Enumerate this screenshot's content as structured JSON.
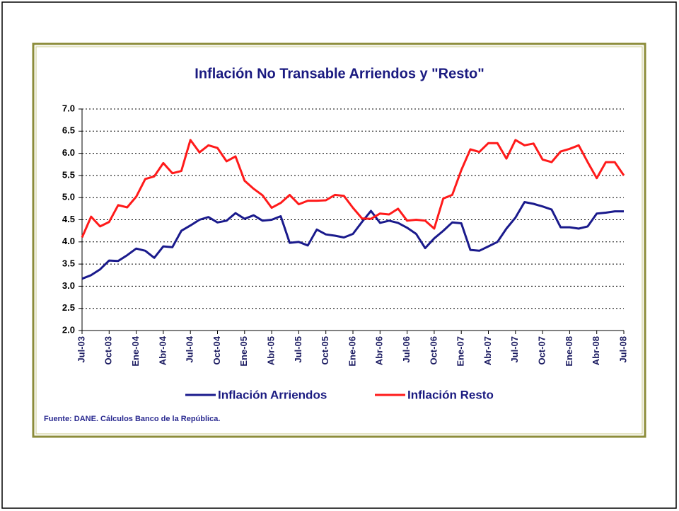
{
  "chart_data": {
    "type": "line",
    "title": "Inflación No Transable Arriendos y \"Resto\"",
    "source": "Fuente: DANE. Cálculos Banco de la República.",
    "categories": [
      "Jul-03",
      null,
      null,
      "Oct-03",
      null,
      null,
      "Ene-04",
      null,
      null,
      "Abr-04",
      null,
      null,
      "Jul-04",
      null,
      null,
      "Oct-04",
      null,
      null,
      "Ene-05",
      null,
      null,
      "Abr-05",
      null,
      null,
      "Jul-05",
      null,
      null,
      "Oct-05",
      null,
      null,
      "Ene-06",
      null,
      null,
      "Abr-06",
      null,
      null,
      "Jul-06",
      null,
      null,
      "Oct-06",
      null,
      null,
      "Ene-07",
      null,
      null,
      "Abr-07",
      null,
      null,
      "Jul-07",
      null,
      null,
      "Oct-07",
      null,
      null,
      "Ene-08",
      null,
      null,
      "Abr-08",
      null,
      null,
      "Jul-08"
    ],
    "series": [
      {
        "name": "Inflación Arriendos",
        "color": "#1a1a8c",
        "values": [
          3.17,
          3.25,
          3.38,
          3.58,
          3.57,
          3.7,
          3.85,
          3.8,
          3.64,
          3.9,
          3.88,
          4.25,
          4.37,
          4.5,
          4.56,
          4.44,
          4.48,
          4.65,
          4.52,
          4.6,
          4.48,
          4.5,
          4.58,
          3.98,
          4.0,
          3.92,
          4.28,
          4.17,
          4.14,
          4.1,
          4.18,
          4.45,
          4.7,
          4.43,
          4.48,
          4.43,
          4.32,
          4.18,
          3.86,
          4.08,
          4.25,
          4.44,
          4.42,
          3.82,
          3.8,
          3.9,
          4.0,
          4.3,
          4.55,
          4.9,
          4.86,
          4.8,
          4.73,
          4.33,
          4.33,
          4.3,
          4.35,
          4.64,
          4.66,
          4.69,
          4.69
        ]
      },
      {
        "name": "Inflación Resto",
        "color": "#ff1a1a",
        "values": [
          4.1,
          4.57,
          4.35,
          4.45,
          4.83,
          4.78,
          5.02,
          5.42,
          5.48,
          5.78,
          5.55,
          5.6,
          6.3,
          6.02,
          6.18,
          6.12,
          5.82,
          5.93,
          5.38,
          5.2,
          5.05,
          4.77,
          4.88,
          5.06,
          4.85,
          4.93,
          4.93,
          4.94,
          5.06,
          5.04,
          4.77,
          4.53,
          4.52,
          4.64,
          4.62,
          4.75,
          4.48,
          4.5,
          4.48,
          4.3,
          4.98,
          5.06,
          5.62,
          6.09,
          6.03,
          6.23,
          6.23,
          5.88,
          6.3,
          6.18,
          6.22,
          5.86,
          5.8,
          6.04,
          6.1,
          6.18,
          5.8,
          5.44,
          5.8,
          5.8,
          5.5
        ]
      }
    ],
    "ylim": [
      2,
      7
    ],
    "yticks": [
      {
        "value": 2,
        "label": "2.0"
      },
      2.5,
      {
        "value": 3,
        "label": "3.0"
      },
      3.5,
      {
        "value": 4,
        "label": "4.0"
      },
      4.5,
      {
        "value": 5,
        "label": "5.0"
      },
      5.5,
      {
        "value": 6,
        "label": "6.0"
      },
      6.5,
      {
        "value": 7,
        "label": "7.0"
      }
    ],
    "grid": true,
    "legend": "bottom"
  }
}
